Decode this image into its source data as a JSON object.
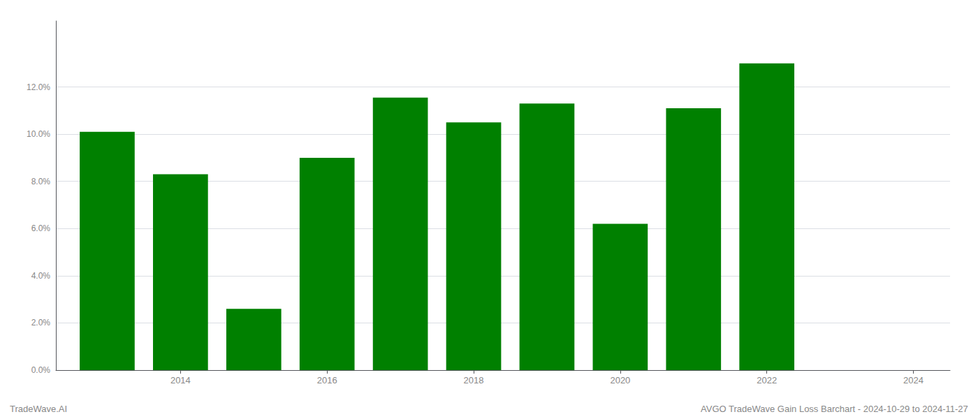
{
  "chart_data": {
    "type": "bar",
    "x": [
      2013,
      2014,
      2015,
      2016,
      2017,
      2018,
      2019,
      2020,
      2021,
      2022
    ],
    "values": [
      0.101,
      0.083,
      0.026,
      0.09,
      0.1155,
      0.105,
      0.113,
      0.062,
      0.111,
      0.13
    ],
    "color": "#008000",
    "xlim": [
      2012.3,
      2024.5
    ],
    "xticks": [
      2014,
      2016,
      2018,
      2020,
      2022,
      2024
    ],
    "ylim": [
      0,
      0.148
    ],
    "yticks": [
      {
        "value": 0.0,
        "label": "0.0%"
      },
      {
        "value": 0.02,
        "label": "2.0%"
      },
      {
        "value": 0.04,
        "label": "4.0%"
      },
      {
        "value": 0.06,
        "label": "6.0%"
      },
      {
        "value": 0.08,
        "label": "8.0%"
      },
      {
        "value": 0.1,
        "label": "10.0%"
      },
      {
        "value": 0.12,
        "label": "12.0%"
      }
    ],
    "grid": true,
    "annotations": [
      "TradeWave.AI",
      "AVGO TradeWave Gain Loss Barchart - 2024-10-29 to 2024-11-27"
    ]
  }
}
